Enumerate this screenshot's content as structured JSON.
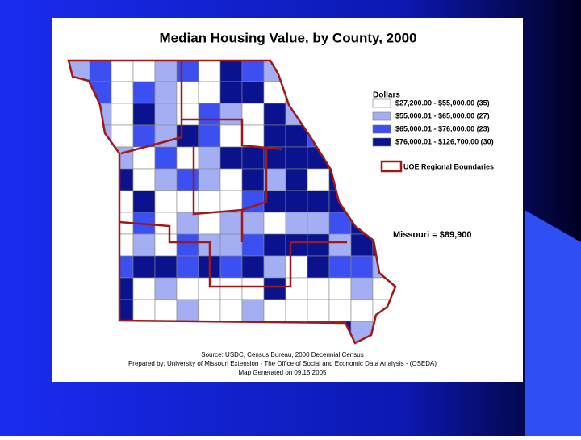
{
  "title": "Median Housing Value, by County, 2000",
  "legend": {
    "title": "Dollars",
    "items": [
      {
        "label": "$27,200.00 - $55,000.00 (35)",
        "color": "#ffffff"
      },
      {
        "label": "$55,000.01 - $65,000.00 (27)",
        "color": "#a4aef2"
      },
      {
        "label": "$65,000.01 - $76,000.00 (23)",
        "color": "#3c4ff0"
      },
      {
        "label": "$76,000.01 - $126,700.00 (30)",
        "color": "#0b128e"
      }
    ],
    "boundaries": "UOE Regional Boundaries"
  },
  "state_value": "Missouri = $89,900",
  "source": [
    "Source: USDC, Census Bureau, 2000 Decennial Census",
    "Prepared by: University of Missouri Extension - The Office of Social and Economic Data Analysis - (OSEDA)",
    "Map Generated on 09.15.2005"
  ]
}
